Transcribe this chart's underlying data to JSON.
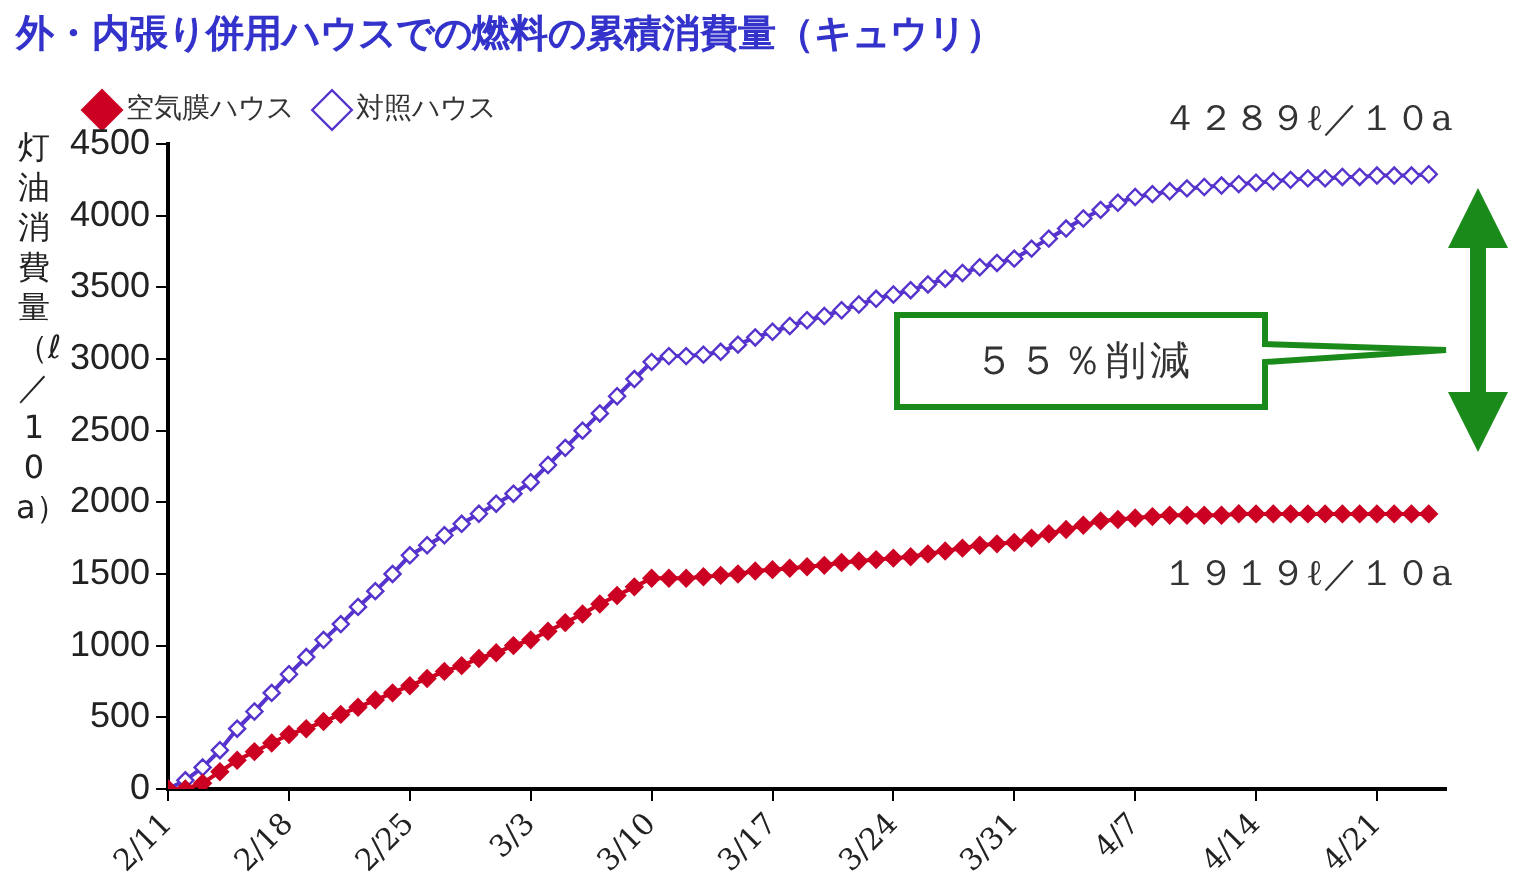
{
  "chart_data": {
    "type": "line",
    "title": "外・内張り併用ハウスでの燃料の累積消費量（キュウリ）",
    "ylabel": "灯油消費量（ℓ／10a）",
    "x": [
      "--02-11",
      "--02-12",
      "--02-13",
      "--02-14",
      "--02-15",
      "--02-16",
      "--02-17",
      "--02-18",
      "--02-19",
      "--02-20",
      "--02-21",
      "--02-22",
      "--02-23",
      "--02-24",
      "--02-25",
      "--02-26",
      "--02-27",
      "--02-28",
      "--02-29",
      "--03-01",
      "--03-02",
      "--03-03",
      "--03-04",
      "--03-05",
      "--03-06",
      "--03-07",
      "--03-08",
      "--03-09",
      "--03-10",
      "--03-11",
      "--03-12",
      "--03-13",
      "--03-14",
      "--03-15",
      "--03-16",
      "--03-17",
      "--03-18",
      "--03-19",
      "--03-20",
      "--03-21",
      "--03-22",
      "--03-23",
      "--03-24",
      "--03-25",
      "--03-26",
      "--03-27",
      "--03-28",
      "--03-29",
      "--03-30",
      "--03-31",
      "--04-01",
      "--04-02",
      "--04-03",
      "--04-04",
      "--04-05",
      "--04-06",
      "--04-07",
      "--04-08",
      "--04-09",
      "--04-10",
      "--04-11",
      "--04-12",
      "--04-13",
      "--04-14",
      "--04-15",
      "--04-16",
      "--04-17",
      "--04-18",
      "--04-19",
      "--04-20",
      "--04-21",
      "--04-22",
      "--04-23",
      "--04-24"
    ],
    "series": [
      {
        "name": "空気膜ハウス",
        "color": "#cc0022",
        "values": [
          0,
          0,
          40,
          120,
          200,
          260,
          320,
          380,
          420,
          470,
          520,
          570,
          620,
          670,
          720,
          770,
          820,
          860,
          910,
          950,
          1000,
          1040,
          1100,
          1160,
          1220,
          1290,
          1350,
          1410,
          1470,
          1470,
          1470,
          1480,
          1490,
          1500,
          1520,
          1530,
          1540,
          1550,
          1560,
          1580,
          1590,
          1600,
          1610,
          1620,
          1640,
          1660,
          1680,
          1700,
          1710,
          1720,
          1750,
          1780,
          1810,
          1840,
          1870,
          1880,
          1890,
          1900,
          1910,
          1910,
          1910,
          1910,
          1920,
          1919,
          1919,
          1919,
          1919,
          1919,
          1919,
          1919,
          1919,
          1919,
          1919,
          1919
        ]
      },
      {
        "name": "対照ハウス",
        "color": "#5533cc",
        "values": [
          0,
          60,
          150,
          270,
          420,
          540,
          670,
          800,
          920,
          1040,
          1150,
          1270,
          1380,
          1500,
          1630,
          1700,
          1770,
          1850,
          1920,
          1990,
          2060,
          2140,
          2260,
          2380,
          2500,
          2620,
          2740,
          2860,
          2980,
          3020,
          3020,
          3030,
          3050,
          3100,
          3150,
          3190,
          3230,
          3270,
          3300,
          3340,
          3380,
          3420,
          3450,
          3480,
          3520,
          3560,
          3600,
          3640,
          3670,
          3700,
          3770,
          3840,
          3910,
          3980,
          4040,
          4090,
          4130,
          4150,
          4170,
          4190,
          4200,
          4210,
          4220,
          4230,
          4240,
          4250,
          4260,
          4260,
          4270,
          4270,
          4280,
          4280,
          4280,
          4289
        ]
      }
    ],
    "xlim": [
      "--02-11",
      "--04-25"
    ],
    "xticks": [
      {
        "value": "--02-11",
        "label": "2/11"
      },
      {
        "value": "--02-18",
        "label": "2/18"
      },
      {
        "value": "--02-25",
        "label": "2/25"
      },
      {
        "value": "--03-03",
        "label": "3/3"
      },
      {
        "value": "--03-10",
        "label": "3/10"
      },
      {
        "value": "--03-17",
        "label": "3/17"
      },
      {
        "value": "--03-24",
        "label": "3/24"
      },
      {
        "value": "--03-31",
        "label": "3/31"
      },
      {
        "value": "--04-07",
        "label": "4/7"
      },
      {
        "value": "--04-14",
        "label": "4/14"
      },
      {
        "value": "--04-21",
        "label": "4/21"
      }
    ],
    "ylim": [
      0,
      4500
    ],
    "yticks": [
      0,
      500,
      1000,
      1500,
      2000,
      2500,
      3000,
      3500,
      4000,
      4500
    ],
    "annotations": [
      {
        "text": "４２８９ℓ／１０a",
        "x": "--04-24",
        "y": 4289
      },
      {
        "text": "１９１９ℓ／１０a",
        "x": "--04-24",
        "y": 1919
      },
      "５５％削減"
    ],
    "grid": false,
    "legend": "top left",
    "marker": "diamond",
    "line_style": "solid"
  }
}
